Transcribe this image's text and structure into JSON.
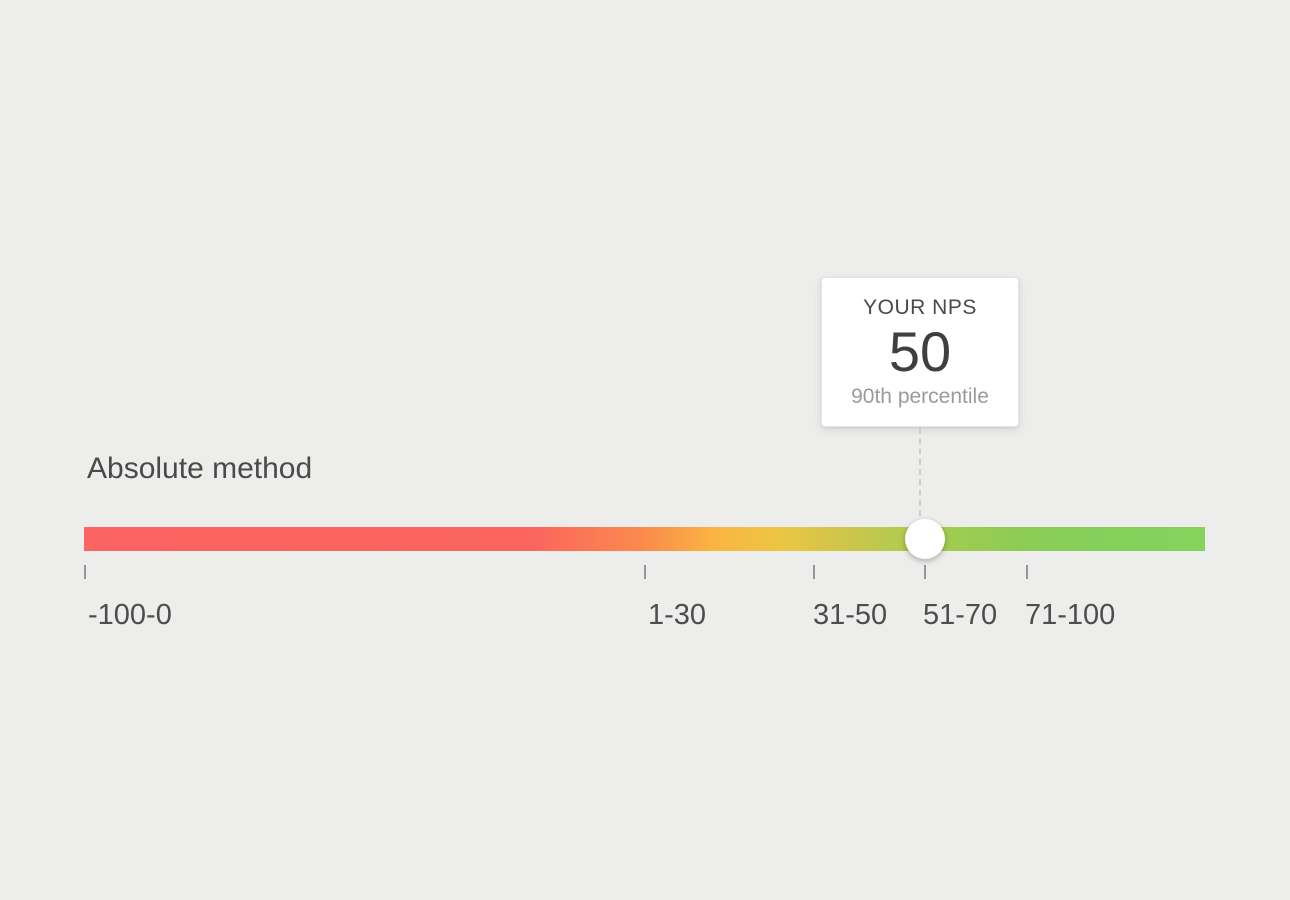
{
  "page": {
    "background_color": "#EDEDEC"
  },
  "section_title": "Absolute method",
  "tooltip": {
    "label": "YOUR NPS",
    "value": "50",
    "subtitle": "90th percentile"
  },
  "scale": {
    "min": -100,
    "max": 100,
    "current_value": 50,
    "handle_position_pct": 75,
    "tick_labels": [
      "-100-0",
      "1-30",
      "31-50",
      "51-70",
      "71-100"
    ],
    "tick_positions_pct": [
      0,
      50,
      65,
      75,
      84
    ],
    "gradient_colors": [
      "#FC6363",
      "#FA8B4C",
      "#FBB343",
      "#D2C54A",
      "#9FCB51",
      "#84D45C"
    ],
    "handle_color": "#FFFFFF"
  },
  "chart_data": {
    "type": "gauge",
    "title": "Absolute method",
    "value": 50,
    "value_label": "YOUR NPS",
    "annotation": "90th percentile",
    "axis_range": [
      -100,
      100
    ],
    "categories": [
      "-100-0",
      "1-30",
      "31-50",
      "51-70",
      "71-100"
    ],
    "category_positions_pct": [
      0,
      50,
      65,
      75,
      84
    ],
    "handle_position_pct": 75,
    "gradient": [
      "#FC6363",
      "#FA8B4C",
      "#FBB343",
      "#D2C54A",
      "#9FCB51",
      "#84D45C"
    ],
    "legend": "off",
    "grid": "off"
  }
}
